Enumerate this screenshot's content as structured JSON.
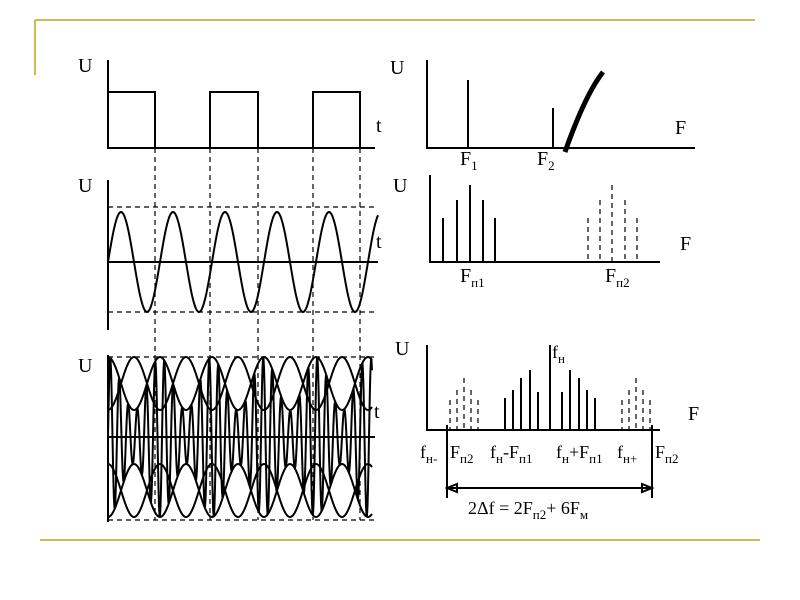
{
  "left_panels": [
    {
      "y_label": "U",
      "x_label": "t"
    },
    {
      "y_label": "U",
      "x_label": "t"
    },
    {
      "y_label": "U",
      "x_label": "t"
    }
  ],
  "right_panels": [
    {
      "y_label": "U",
      "x_label": "F",
      "labels": [
        [
          "F",
          "1"
        ],
        [
          "F",
          "2"
        ]
      ]
    },
    {
      "y_label": "U",
      "x_label": "F",
      "labels": [
        [
          "F",
          "п1"
        ],
        [
          "F",
          "п2"
        ]
      ]
    },
    {
      "y_label": "U",
      "x_label": "F",
      "labels": [
        [
          "f",
          "н"
        ],
        [
          "f",
          "н-"
        ],
        [
          "F",
          "п2"
        ],
        [
          "f",
          "н",
          "-F",
          "п1"
        ],
        [
          "f",
          "н",
          "+F",
          "п1"
        ],
        [
          "f",
          "н+"
        ],
        [
          "F",
          "п2"
        ]
      ],
      "formula": [
        "2Δf = 2F",
        "п2",
        "+ 6F",
        "м"
      ]
    }
  ]
}
